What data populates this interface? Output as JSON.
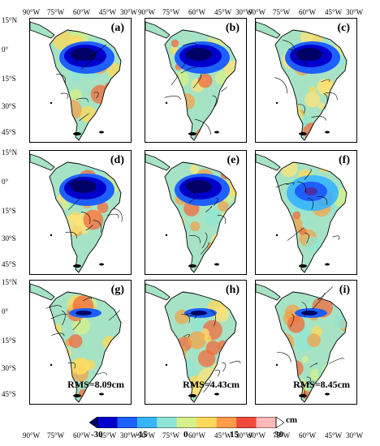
{
  "panels": [
    {
      "id": "a",
      "label": "(a)",
      "rms": "",
      "deficit": "strong",
      "seed": 1
    },
    {
      "id": "b",
      "label": "(b)",
      "rms": "",
      "deficit": "strong",
      "seed": 2
    },
    {
      "id": "c",
      "label": "(c)",
      "rms": "",
      "deficit": "strong",
      "seed": 3
    },
    {
      "id": "d",
      "label": "(d)",
      "rms": "",
      "deficit": "strong",
      "seed": 4
    },
    {
      "id": "e",
      "label": "(e)",
      "rms": "",
      "deficit": "strong",
      "seed": 5
    },
    {
      "id": "f",
      "label": "(f)",
      "rms": "",
      "deficit": "weak",
      "seed": 6
    },
    {
      "id": "g",
      "label": "(g)",
      "rms": "RMS=8.09cm",
      "deficit": "small",
      "seed": 7
    },
    {
      "id": "h",
      "label": "(h)",
      "rms": "RMS=4.43cm",
      "deficit": "small",
      "seed": 8
    },
    {
      "id": "i",
      "label": "(i)",
      "rms": "RMS=8.45cm",
      "deficit": "small",
      "seed": 9
    }
  ],
  "lon_labels": [
    "90°W",
    "75°W",
    "60°W",
    "45°W",
    "30°W"
  ],
  "lat_labels": [
    "15°N",
    "0°",
    "15°S",
    "30°S",
    "45°S"
  ],
  "colorbar": {
    "ticks": [
      "-30",
      "-15",
      "0",
      "15",
      "30"
    ],
    "unit": "cm",
    "colors": [
      "#000066",
      "#0000cc",
      "#1e5fff",
      "#36b4ff",
      "#8fe6d4",
      "#d6f08a",
      "#ffd85a",
      "#ff9c48",
      "#f04a3c",
      "#ffb8b8",
      "#ffffff"
    ]
  }
}
